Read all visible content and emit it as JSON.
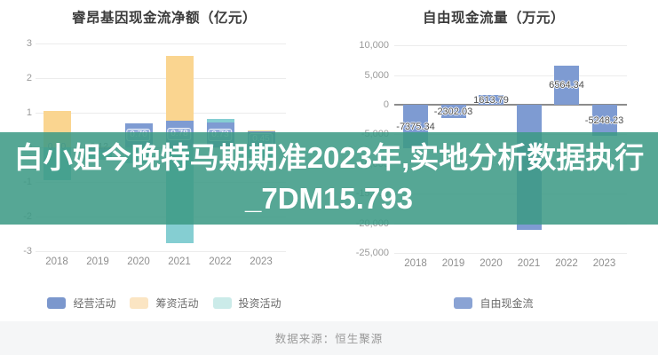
{
  "overlay": {
    "line1": "白小姐今晚特马期期准2023年,实地分析数据执行",
    "line2": "_7DM15.793",
    "background_color": "#3d9a85"
  },
  "footer": {
    "text": "数据来源：恒生聚源"
  },
  "chart_data": [
    {
      "type": "bar",
      "title": "睿昂基因现金流净额（亿元）",
      "categories": [
        "2018",
        "2019",
        "2020",
        "2021",
        "2022",
        "2023"
      ],
      "series": [
        {
          "name": "经营活动",
          "color": "#7e9bd2",
          "legend_color": "#7b97cd",
          "values": [
            0.0,
            -0.12,
            0.7,
            0.78,
            0.73,
            0.45
          ],
          "labels": [
            "0.00",
            "-0.12",
            "0.70",
            "0.78",
            "0.73",
            "0.45"
          ]
        },
        {
          "name": "筹资活动",
          "color": "#fad590",
          "legend_color": "#fbe5c3",
          "values": [
            1.05,
            0.03,
            0,
            1.85,
            0,
            0.05
          ]
        },
        {
          "name": "投资活动",
          "color": "#85ced2",
          "legend_color": "#cbebe9",
          "values": [
            -0.95,
            -0.25,
            -0.45,
            -2.78,
            0.08,
            -0.3
          ]
        }
      ],
      "stacked": true,
      "grid": true,
      "legend_position": "bottom",
      "ylim": [
        -3,
        3
      ],
      "yticks": {
        "values": [
          3,
          2,
          1,
          0,
          -1,
          -2,
          -3
        ],
        "labels": [
          "3",
          "2",
          "1",
          "0",
          "-1",
          "-2",
          "-3"
        ]
      }
    },
    {
      "type": "bar",
      "title": "自由现金流量（万元）",
      "categories": [
        "2018",
        "2019",
        "2020",
        "2021",
        "2022",
        "2023"
      ],
      "series": [
        {
          "name": "自由现金流",
          "color": "#7e9bd2",
          "legend_color": "#8aa3d4",
          "values": [
            -7375.34,
            -2302.03,
            1613.79,
            -21100,
            6564.34,
            -5248.23
          ],
          "labels": [
            "-7375.34",
            "-2302.03",
            "1613.79",
            "",
            "6564.34",
            "-5248.23"
          ]
        }
      ],
      "stacked": false,
      "grid": true,
      "legend_position": "bottom",
      "ylim": [
        -25000,
        10000
      ],
      "yticks": {
        "values": [
          10000,
          5000,
          0,
          -5000,
          -10000,
          -15000,
          -20000,
          -25000
        ],
        "labels": [
          "10,000",
          "5,000",
          "0",
          "-5,000",
          "-10,000",
          "-15,000",
          "-20,000",
          "-25,000"
        ]
      }
    }
  ]
}
